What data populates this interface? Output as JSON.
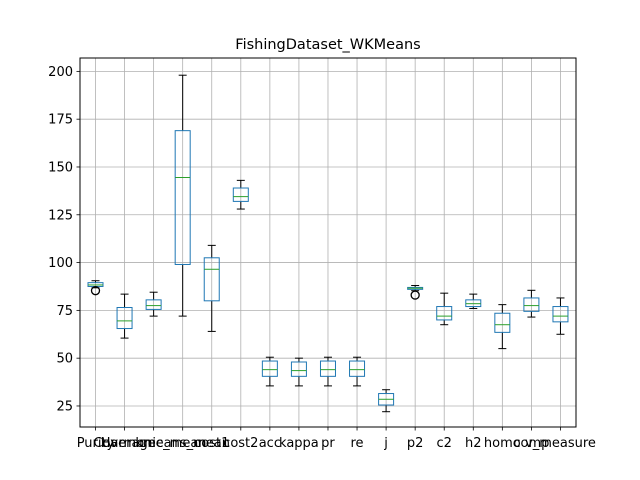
{
  "chart_data": {
    "type": "boxplot",
    "title": "FishingDataset_WKMeans",
    "xlabel": "",
    "ylabel": "",
    "ylim": [
      14,
      207
    ],
    "yticks": [
      25,
      50,
      75,
      100,
      125,
      150,
      175,
      200
    ],
    "grid": true,
    "colors": {
      "box": "#1f77b4",
      "median": "#2ca02c",
      "whisker": "#000000",
      "grid": "#b0b0b0"
    },
    "categories": [
      "Purity",
      "Coverage",
      "Harmonic_mean",
      "kmeans_mean",
      "cost1",
      "cost2",
      "acc",
      "kappa",
      "pr",
      "re",
      "j",
      "p2",
      "c2",
      "h2",
      "homo",
      "comp",
      "v_measure"
    ],
    "series": [
      {
        "category": "Purity",
        "q1": 87.5,
        "median": 88.3,
        "q3": 89.5,
        "whisker_low": 86.8,
        "whisker_high": 90.5,
        "outliers": [
          85.3
        ]
      },
      {
        "category": "Coverage",
        "q1": 65.5,
        "median": 69.5,
        "q3": 76.5,
        "whisker_low": 60.5,
        "whisker_high": 83.5,
        "outliers": []
      },
      {
        "category": "Harmonic_mean",
        "q1": 75.5,
        "median": 77.5,
        "q3": 80.5,
        "whisker_low": 72.0,
        "whisker_high": 84.5,
        "outliers": []
      },
      {
        "category": "kmeans_mean",
        "q1": 99.0,
        "median": 144.5,
        "q3": 169.0,
        "whisker_low": 72.0,
        "whisker_high": 198.0,
        "outliers": []
      },
      {
        "category": "cost1",
        "q1": 80.0,
        "median": 96.5,
        "q3": 102.5,
        "whisker_low": 64.0,
        "whisker_high": 109.0,
        "outliers": []
      },
      {
        "category": "cost2",
        "q1": 132.0,
        "median": 134.5,
        "q3": 139.0,
        "whisker_low": 128.0,
        "whisker_high": 143.0,
        "outliers": []
      },
      {
        "category": "acc",
        "q1": 40.5,
        "median": 44.0,
        "q3": 48.5,
        "whisker_low": 35.5,
        "whisker_high": 50.5,
        "outliers": []
      },
      {
        "category": "kappa",
        "q1": 40.5,
        "median": 43.5,
        "q3": 48.0,
        "whisker_low": 35.5,
        "whisker_high": 50.0,
        "outliers": []
      },
      {
        "category": "pr",
        "q1": 40.5,
        "median": 44.0,
        "q3": 48.5,
        "whisker_low": 35.5,
        "whisker_high": 50.5,
        "outliers": []
      },
      {
        "category": "re",
        "q1": 40.5,
        "median": 44.0,
        "q3": 48.5,
        "whisker_low": 35.5,
        "whisker_high": 50.5,
        "outliers": []
      },
      {
        "category": "j",
        "q1": 25.5,
        "median": 28.5,
        "q3": 31.5,
        "whisker_low": 22.0,
        "whisker_high": 33.5,
        "outliers": []
      },
      {
        "category": "p2",
        "q1": 86.0,
        "median": 86.6,
        "q3": 87.0,
        "whisker_low": 85.3,
        "whisker_high": 88.0,
        "outliers": [
          83.0
        ]
      },
      {
        "category": "c2",
        "q1": 70.0,
        "median": 72.0,
        "q3": 77.0,
        "whisker_low": 67.5,
        "whisker_high": 84.0,
        "outliers": []
      },
      {
        "category": "h2",
        "q1": 77.0,
        "median": 78.5,
        "q3": 80.5,
        "whisker_low": 76.0,
        "whisker_high": 83.5,
        "outliers": []
      },
      {
        "category": "homo",
        "q1": 63.5,
        "median": 67.5,
        "q3": 73.5,
        "whisker_low": 55.0,
        "whisker_high": 78.0,
        "outliers": []
      },
      {
        "category": "comp",
        "q1": 74.5,
        "median": 77.5,
        "q3": 81.5,
        "whisker_low": 71.5,
        "whisker_high": 85.5,
        "outliers": []
      },
      {
        "category": "v_measure",
        "q1": 69.0,
        "median": 72.0,
        "q3": 77.0,
        "whisker_low": 62.5,
        "whisker_high": 81.5,
        "outliers": []
      }
    ]
  }
}
